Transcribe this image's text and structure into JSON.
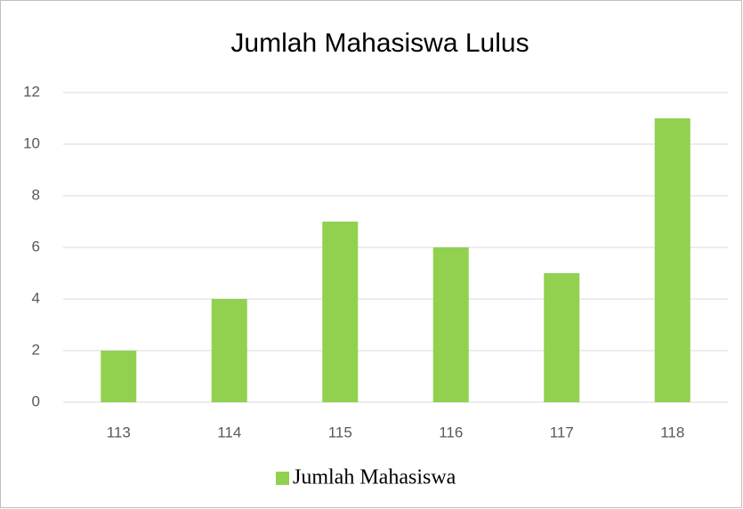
{
  "chart_data": {
    "type": "bar",
    "title": "Jumlah Mahasiswa Lulus",
    "categories": [
      "113",
      "114",
      "115",
      "116",
      "117",
      "118"
    ],
    "series": [
      {
        "name": "Jumlah Mahasiswa",
        "color": "#92d050",
        "values": [
          2,
          4,
          7,
          6,
          5,
          11
        ]
      }
    ],
    "ylim": [
      0,
      12
    ],
    "yticks": [
      0,
      2,
      4,
      6,
      8,
      10,
      12
    ],
    "grid": true,
    "legend": "bottom"
  }
}
